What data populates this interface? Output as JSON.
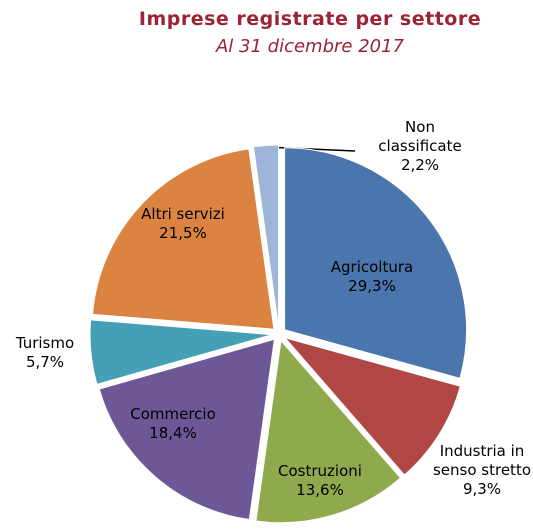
{
  "chart_data": {
    "type": "pie",
    "title": "Imprese registrate per settore",
    "subtitle": "Al 31 dicembre 2017",
    "categories": [
      "Agricoltura",
      "Industria in senso stretto",
      "Costruzioni",
      "Commercio",
      "Turismo",
      "Altri servizi",
      "Non classificate"
    ],
    "values": [
      29.3,
      9.3,
      13.6,
      18.4,
      5.7,
      21.5,
      2.2
    ],
    "value_labels": [
      "29,3%",
      "9,3%",
      "13,6%",
      "18,4%",
      "5,7%",
      "21,5%",
      "2,2%"
    ],
    "colors": [
      "#4a76ad",
      "#b04744",
      "#8faa4c",
      "#6e5796",
      "#46a0b5",
      "#db8442",
      "#9fb4d9"
    ]
  }
}
